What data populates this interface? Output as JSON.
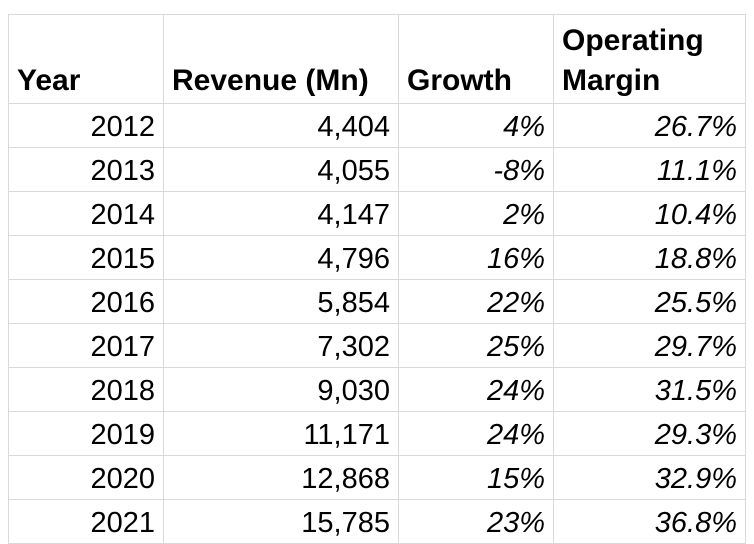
{
  "table": {
    "header": [
      "Year",
      "Revenue (Mn)",
      "Growth",
      "Operating Margin"
    ],
    "rows": [
      [
        "2012",
        "4,404",
        "4%",
        "26.7%"
      ],
      [
        "2013",
        "4,055",
        "-8%",
        "11.1%"
      ],
      [
        "2014",
        "4,147",
        "2%",
        "10.4%"
      ],
      [
        "2015",
        "4,796",
        "16%",
        "18.8%"
      ],
      [
        "2016",
        "5,854",
        "22%",
        "25.5%"
      ],
      [
        "2017",
        "7,302",
        "25%",
        "29.7%"
      ],
      [
        "2018",
        "9,030",
        "24%",
        "31.5%"
      ],
      [
        "2019",
        "11,171",
        "24%",
        "29.3%"
      ],
      [
        "2020",
        "12,868",
        "15%",
        "32.9%"
      ],
      [
        "2021",
        "15,785",
        "23%",
        "36.8%"
      ]
    ]
  }
}
